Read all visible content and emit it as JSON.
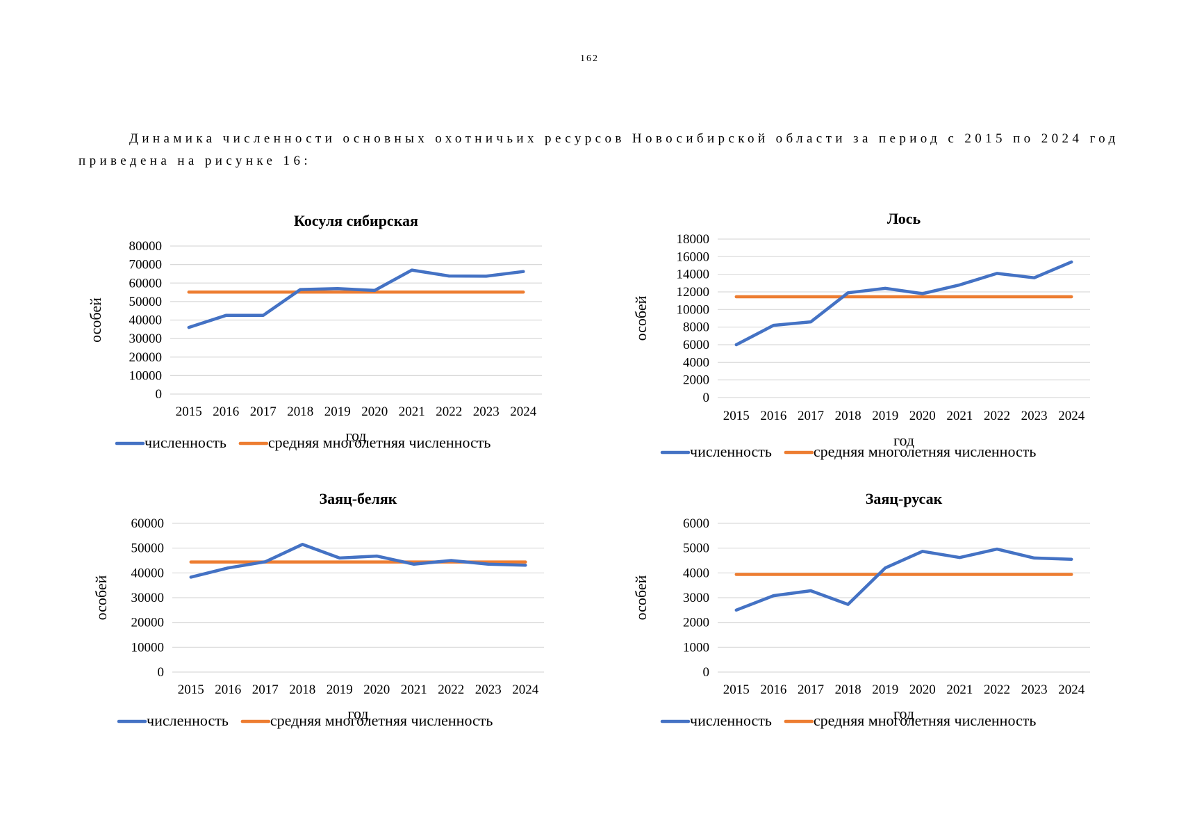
{
  "page": {
    "number": "162"
  },
  "intro": {
    "line1": "Динамика численности основных охотничьих ресурсов Новосибирской области за период с 2015 по 2024 год",
    "line2": "приведена на рисунке 16:"
  },
  "colors": {
    "series": "#4472C4",
    "average": "#ED7D31",
    "grid": "#D9D9D9"
  },
  "chart_data": [
    {
      "type": "line",
      "title": "Косуля сибирская",
      "xlabel": "год",
      "ylabel": "особей",
      "categories": [
        "2015",
        "2016",
        "2017",
        "2018",
        "2019",
        "2020",
        "2021",
        "2022",
        "2023",
        "2024"
      ],
      "ylim": [
        0,
        80000
      ],
      "yticks": [
        0,
        10000,
        20000,
        30000,
        40000,
        50000,
        60000,
        70000,
        80000
      ],
      "grid": true,
      "legend_position": "bottom",
      "series": [
        {
          "name": "численность",
          "values": [
            36000,
            42500,
            42500,
            56500,
            57000,
            56000,
            67000,
            63800,
            63700,
            66200
          ]
        },
        {
          "name": "средняя многолетняя численность",
          "values": [
            55100,
            55100,
            55100,
            55100,
            55100,
            55100,
            55100,
            55100,
            55100,
            55100
          ]
        }
      ]
    },
    {
      "type": "line",
      "title": "Лось",
      "xlabel": "год",
      "ylabel": "особей",
      "categories": [
        "2015",
        "2016",
        "2017",
        "2018",
        "2019",
        "2020",
        "2021",
        "2022",
        "2023",
        "2024"
      ],
      "ylim": [
        0,
        18000
      ],
      "yticks": [
        0,
        2000,
        4000,
        6000,
        8000,
        10000,
        12000,
        14000,
        16000,
        18000
      ],
      "grid": true,
      "legend_position": "bottom",
      "series": [
        {
          "name": "численность",
          "values": [
            6000,
            8200,
            8600,
            11900,
            12400,
            11800,
            12800,
            14100,
            13600,
            15400
          ]
        },
        {
          "name": "средняя многолетняя численность",
          "values": [
            11450,
            11450,
            11450,
            11450,
            11450,
            11450,
            11450,
            11450,
            11450,
            11450
          ]
        }
      ]
    },
    {
      "type": "line",
      "title": "Заяц-беляк",
      "xlabel": "год",
      "ylabel": "особей",
      "categories": [
        "2015",
        "2016",
        "2017",
        "2018",
        "2019",
        "2020",
        "2021",
        "2022",
        "2023",
        "2024"
      ],
      "ylim": [
        0,
        60000
      ],
      "yticks": [
        0,
        10000,
        20000,
        30000,
        40000,
        50000,
        60000
      ],
      "grid": true,
      "legend_position": "bottom",
      "series": [
        {
          "name": "численность",
          "values": [
            38300,
            42000,
            44500,
            51500,
            46000,
            46800,
            43500,
            45000,
            43500,
            43100
          ]
        },
        {
          "name": "средняя многолетняя численность",
          "values": [
            44400,
            44400,
            44400,
            44400,
            44400,
            44400,
            44400,
            44400,
            44400,
            44400
          ]
        }
      ]
    },
    {
      "type": "line",
      "title": "Заяц-русак",
      "xlabel": "год",
      "ylabel": "особей",
      "categories": [
        "2015",
        "2016",
        "2017",
        "2018",
        "2019",
        "2020",
        "2021",
        "2022",
        "2023",
        "2024"
      ],
      "ylim": [
        0,
        6000
      ],
      "yticks": [
        0,
        1000,
        2000,
        3000,
        4000,
        5000,
        6000
      ],
      "grid": true,
      "legend_position": "bottom",
      "series": [
        {
          "name": "численность",
          "values": [
            2500,
            3080,
            3280,
            2730,
            4200,
            4870,
            4620,
            4960,
            4600,
            4550
          ]
        },
        {
          "name": "средняя многолетняя численность",
          "values": [
            3940,
            3940,
            3940,
            3940,
            3940,
            3940,
            3940,
            3940,
            3940,
            3940
          ]
        }
      ]
    }
  ]
}
